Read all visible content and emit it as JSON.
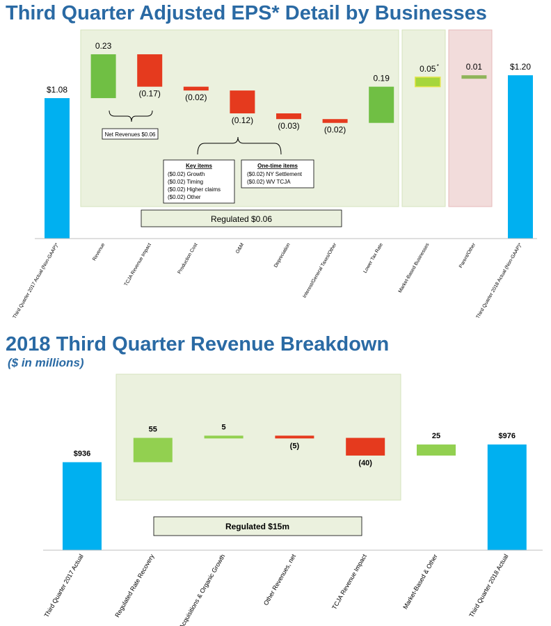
{
  "chart1": {
    "title": "Third Quarter Adjusted EPS* Detail by Businesses",
    "chart_data": {
      "type": "bar",
      "subtype": "waterfall",
      "categories": [
        "Third Quarter 2017 Actual (Non-GAAP)*",
        "Revenue",
        "TCJA Revenue Impact",
        "Production Cost",
        "O&M",
        "Depreciation",
        "Interest/General Taxes/Other",
        "Lower Tax Rate",
        "Market-Based Businesses",
        "Parent/Other",
        "Third Quarter 2018 Actual (Non-GAAP)*"
      ],
      "values": [
        1.08,
        0.23,
        -0.17,
        -0.02,
        -0.12,
        -0.03,
        -0.02,
        0.19,
        0.05,
        0.01,
        1.2
      ],
      "kinds": [
        "total",
        "delta",
        "delta",
        "delta",
        "delta",
        "delta",
        "delta",
        "delta",
        "delta",
        "delta",
        "total"
      ],
      "value_labels": [
        "$1.08",
        "0.23",
        "(0.17)",
        "(0.02)",
        "(0.12)",
        "(0.03)",
        "(0.02)",
        "0.19",
        "0.05",
        "0.01",
        "$1.20"
      ],
      "marker_labels": {
        "8": "*"
      },
      "colors": {
        "total": "#00b0f0",
        "increase": "#70bf44",
        "decrease": "#e53a1e",
        "market": "#a6d63c",
        "parent": "#8fb45a"
      },
      "annotations": {
        "net_revenues": "Net Revenues $0.06",
        "key_items_title": "Key items",
        "key_items": [
          "($0.02) Growth",
          "($0.02) Timing",
          "($0.02) Higher claims",
          "($0.02) Other"
        ],
        "one_time_title": "One-time items",
        "one_time_items": [
          "($0.02) NY Settlement",
          "($0.02) WV TCJA"
        ],
        "regulated_box": "Regulated $0.06"
      }
    }
  },
  "chart2": {
    "title": "2018 Third Quarter Revenue Breakdown",
    "subtitle": "($ in millions)",
    "chart_data": {
      "type": "bar",
      "subtype": "waterfall",
      "categories": [
        "Third Quarter 2017 Actual",
        "Regulated Rate Recovery",
        "Acquisitions & Organic Growth",
        "Other Revenues, net",
        "TCJA Revenue Impact",
        "Market-Based & Other",
        "Third Quarter 2018 Actual"
      ],
      "values": [
        936,
        55,
        5,
        -5,
        -40,
        25,
        976
      ],
      "kinds": [
        "total",
        "delta",
        "delta",
        "delta",
        "delta",
        "delta",
        "total"
      ],
      "value_labels": [
        "$936",
        "55",
        "5",
        "(5)",
        "(40)",
        "25",
        "$976"
      ],
      "colors": {
        "total": "#00b0f0",
        "increase": "#92d050",
        "decrease": "#e53a1e"
      },
      "annotations": {
        "regulated_box": "Regulated  $15m"
      }
    }
  }
}
